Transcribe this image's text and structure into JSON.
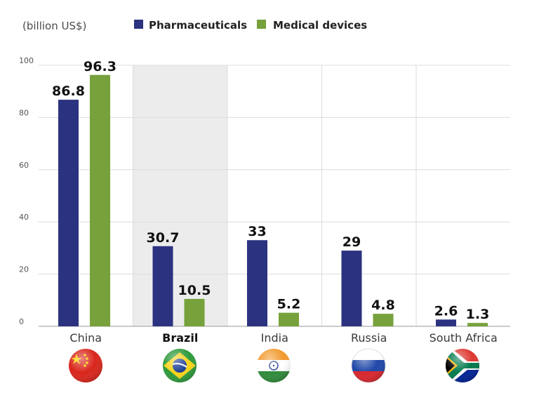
{
  "chart_data": {
    "type": "bar",
    "unit_label": "(billion US$)",
    "categories": [
      "China",
      "Brazil",
      "India",
      "Russia",
      "South Africa"
    ],
    "highlight_category": "Brazil",
    "series": [
      {
        "name": "Pharmaceuticals",
        "color": "#2b3280",
        "values": [
          86.8,
          30.7,
          33,
          29,
          2.6
        ],
        "labels": [
          "86.8",
          "30.7",
          "33",
          "29",
          "2.6"
        ]
      },
      {
        "name": "Medical devices",
        "color": "#76a13b",
        "values": [
          96.3,
          10.5,
          5.2,
          4.8,
          1.3
        ],
        "labels": [
          "96.3",
          "10.5",
          "5.2",
          "4.8",
          "1.3"
        ]
      }
    ],
    "ylim": [
      0,
      100
    ],
    "yticks": [
      0,
      20,
      40,
      60,
      80,
      100
    ],
    "grid": true,
    "legend_position": "top",
    "flag_icons": [
      "china-flag-icon",
      "brazil-flag-icon",
      "india-flag-icon",
      "russia-flag-icon",
      "south-africa-flag-icon"
    ],
    "colors": {
      "highlight_band": "#ececec",
      "grid": "#dcdcdc",
      "axis": "#9a9a9a"
    }
  }
}
